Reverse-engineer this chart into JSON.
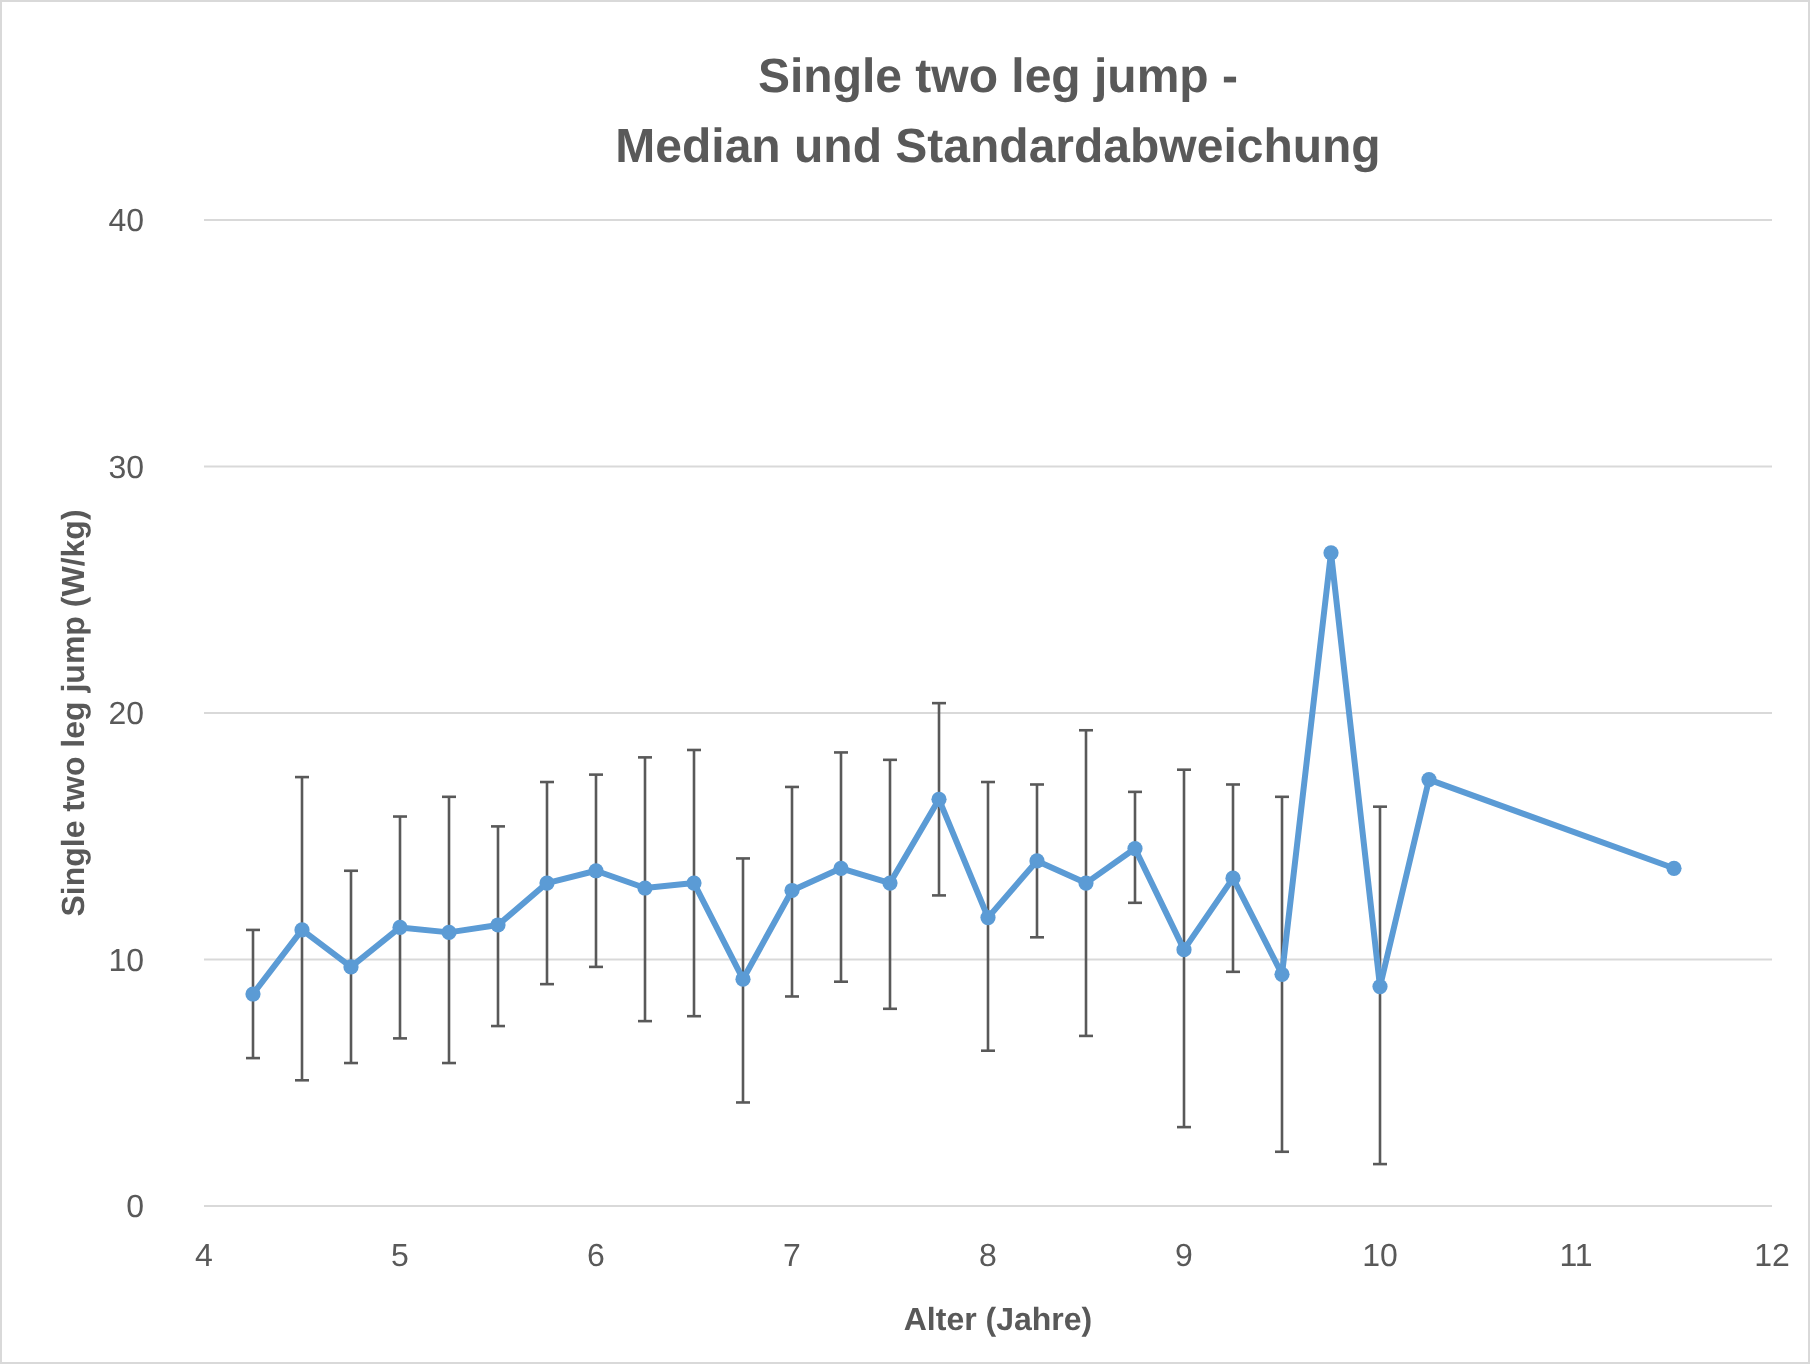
{
  "chart_data": {
    "type": "line",
    "title": "Single two leg jump -\nMedian und Standardabweichung",
    "xlabel": "Alter (Jahre)",
    "ylabel": "Single two leg jump (W/kg)",
    "x": [
      4.25,
      4.5,
      4.75,
      5,
      5.25,
      5.5,
      5.75,
      6,
      6.25,
      6.5,
      6.75,
      7,
      7.25,
      7.5,
      7.75,
      8,
      8.25,
      8.5,
      8.75,
      9,
      9.25,
      9.5,
      9.75,
      10,
      10.25,
      11.5
    ],
    "series": [
      {
        "color": "#5b9bd5",
        "values": [
          8.6,
          11.2,
          9.7,
          11.3,
          11.1,
          11.4,
          13.1,
          13.6,
          12.9,
          13.1,
          9.2,
          12.8,
          13.7,
          13.1,
          16.5,
          11.7,
          14.0,
          13.1,
          14.5,
          10.4,
          13.3,
          9.4,
          26.5,
          8.9,
          17.3,
          13.7
        ],
        "errors": [
          [
            6.0,
            11.2
          ],
          [
            5.1,
            17.4
          ],
          [
            5.8,
            13.6
          ],
          [
            6.8,
            15.8
          ],
          [
            5.8,
            16.6
          ],
          [
            7.3,
            15.4
          ],
          [
            9.0,
            17.2
          ],
          [
            9.7,
            17.5
          ],
          [
            7.5,
            18.2
          ],
          [
            7.7,
            18.5
          ],
          [
            4.2,
            14.1
          ],
          [
            8.5,
            17.0
          ],
          [
            9.1,
            18.4
          ],
          [
            8.0,
            18.1
          ],
          [
            12.6,
            20.4
          ],
          [
            6.3,
            17.2
          ],
          [
            10.9,
            17.1
          ],
          [
            6.9,
            19.3
          ],
          [
            12.3,
            16.8
          ],
          [
            3.2,
            17.7
          ],
          [
            9.5,
            17.1
          ],
          [
            2.2,
            16.6
          ],
          null,
          [
            1.7,
            16.2
          ],
          null,
          null
        ]
      }
    ],
    "xlim": [
      4,
      12
    ],
    "xticks": [
      4,
      5,
      6,
      7,
      8,
      9,
      10,
      11,
      12
    ],
    "ylim": [
      0,
      40
    ],
    "yticks": [
      0,
      10,
      20,
      30,
      40
    ],
    "grid": "y",
    "marker": "circle",
    "line_style": "solid"
  }
}
